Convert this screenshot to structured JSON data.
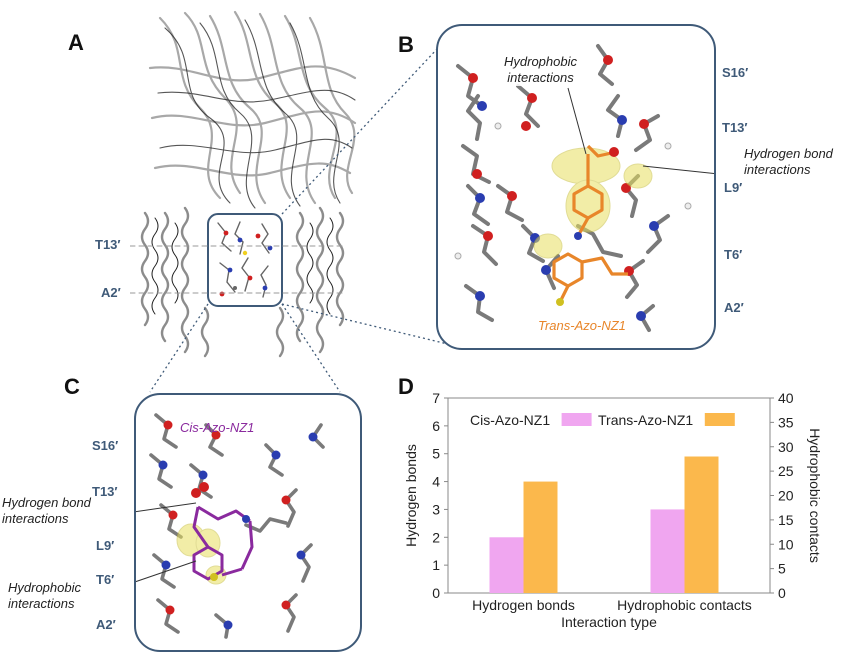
{
  "panels": {
    "a": {
      "letter": "A",
      "labels": {
        "t13": "T13′",
        "a2": "A2′"
      }
    },
    "b": {
      "letter": "B",
      "residues": {
        "s16": "S16′",
        "t13": "T13′",
        "l9": "L9′",
        "t6": "T6′",
        "a2": "A2′"
      },
      "annotations": {
        "hydrophobic": [
          "Hydrophobic",
          "interactions"
        ],
        "hbond": [
          "Hydrogen bond",
          "interactions"
        ]
      },
      "ligand": "Trans-Azo-NZ1"
    },
    "c": {
      "letter": "C",
      "residues": {
        "s16": "S16′",
        "t13": "T13′",
        "l9": "L9′",
        "t6": "T6′",
        "a2": "A2′"
      },
      "annotations": {
        "hbond": [
          "Hydrogen bond",
          "interactions"
        ],
        "hydrophobic": [
          "Hydrophobic",
          "interactions"
        ]
      },
      "ligand": "Cis-Azo-NZ1"
    },
    "d": {
      "letter": "D"
    }
  },
  "colors": {
    "frame": "#3f5a78",
    "cis": "#f0a6f0",
    "trans": "#fbb84c",
    "trans_label": "#e8862a",
    "cis_label": "#8a2a9e"
  },
  "chart_data": {
    "type": "bar",
    "categories": [
      "Hydrogen bonds",
      "Hydrophobic contacts"
    ],
    "xlabel": "Interaction type",
    "ylabel": "Hydrogen bonds",
    "y2label": "Hydrophobic contacts",
    "ylim": [
      0,
      7
    ],
    "y2lim": [
      0,
      40
    ],
    "yticks": [
      "0",
      "1",
      "2",
      "3",
      "4",
      "5",
      "6",
      "7"
    ],
    "y2ticks": [
      "0",
      "5",
      "10",
      "15",
      "20",
      "25",
      "30",
      "35",
      "40"
    ],
    "legend_position": "top",
    "series": [
      {
        "name": "Cis-Azo-NZ1",
        "values": [
          2,
          3
        ]
      },
      {
        "name": "Trans-Azo-NZ1",
        "values": [
          4,
          4.9
        ]
      }
    ]
  }
}
